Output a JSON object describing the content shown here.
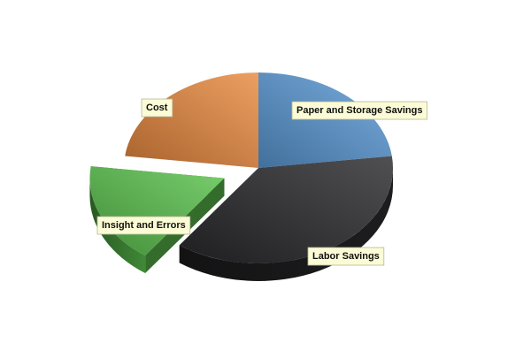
{
  "chart_data": {
    "type": "pie",
    "three_d": true,
    "exploded_slice": "Insight and Errors",
    "legend": "none",
    "slices": [
      {
        "label": "Paper and Storage Savings",
        "value": 23,
        "color": "#5b9bd8"
      },
      {
        "label": "Labor Savings",
        "value": 37,
        "color": "#2a2a2c"
      },
      {
        "label": "Insight and Errors",
        "value": 17,
        "color": "#5cc44e"
      },
      {
        "label": "Cost",
        "value": 23,
        "color": "#e98a3e"
      }
    ]
  }
}
